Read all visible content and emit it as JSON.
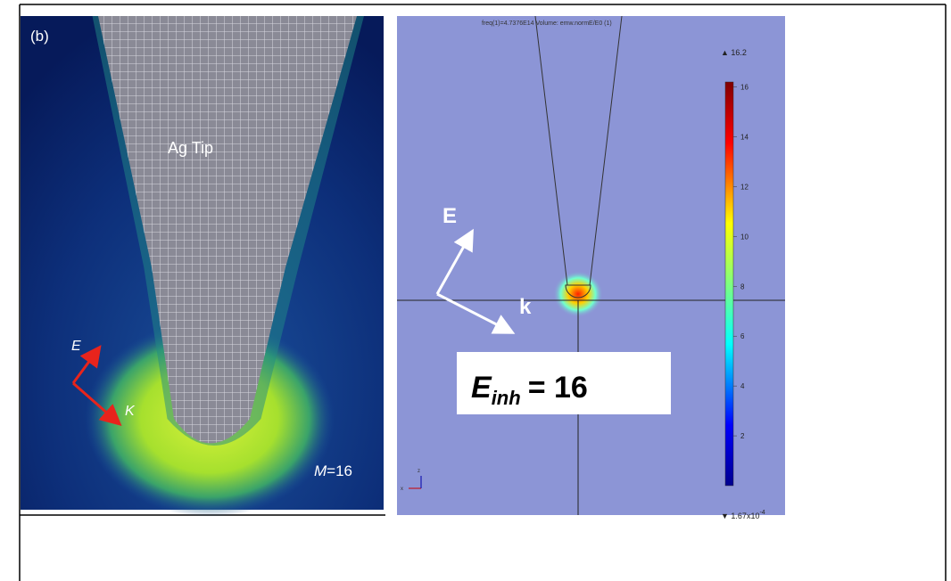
{
  "left_panel": {
    "label": "(b)",
    "tip_label": "Ag Tip",
    "e_label": "E",
    "k_label": "K",
    "m_label": {
      "var": "M",
      "rest": "=16"
    }
  },
  "right_panel": {
    "header": "freq(1)=4.7376E14   Volume: emw.normE/E0 (1)",
    "e_label": "E",
    "k_label": "k",
    "formula": {
      "symbol": "E",
      "subscript": "inh",
      "rhs": "= 16"
    },
    "colorbar": {
      "max": 16.2,
      "ticks": [
        16,
        14,
        12,
        10,
        8,
        6,
        4,
        2
      ],
      "min": {
        "base": "1.67x10",
        "exponent": "-4"
      }
    },
    "axes": {
      "z": "z",
      "x": "x"
    }
  }
}
